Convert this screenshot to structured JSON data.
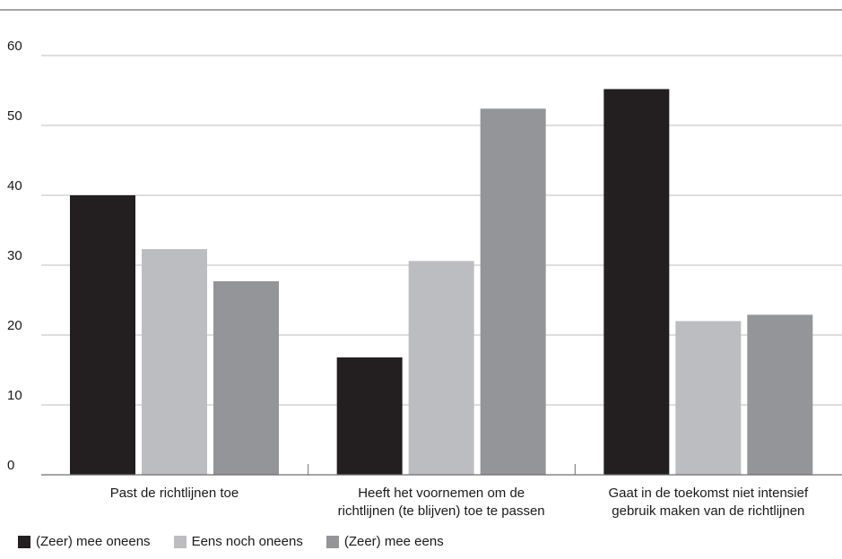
{
  "chart_data": {
    "type": "bar",
    "categories": [
      [
        "Past de richtlijnen toe"
      ],
      [
        "Heeft het voornemen om de",
        "richtlijnen (te blijven) toe te passen"
      ],
      [
        "Gaat in de toekomst niet intensief",
        "gebruik maken van de richtlijnen"
      ]
    ],
    "series": [
      {
        "name": "(Zeer) mee oneens",
        "values": [
          40,
          16.8,
          55.2
        ],
        "color": "#231f20"
      },
      {
        "name": "Eens noch oneens",
        "values": [
          32.3,
          30.6,
          22.0
        ],
        "color": "#bcbdc0"
      },
      {
        "name": "(Zeer) mee eens",
        "values": [
          27.7,
          52.4,
          22.9
        ],
        "color": "#939598"
      }
    ],
    "ylim": [
      0,
      60
    ],
    "yticks": [
      0,
      10,
      20,
      30,
      40,
      50,
      60
    ],
    "grid": true,
    "legend_position": "bottom-left"
  }
}
